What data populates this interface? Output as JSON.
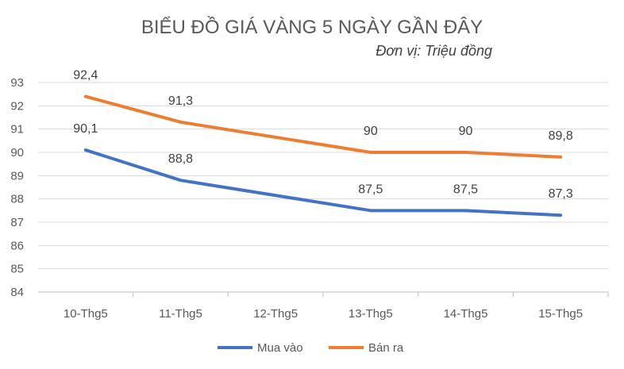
{
  "chart_data": {
    "type": "line",
    "title": "BIỂU ĐỒ GIÁ VÀNG 5 NGÀY GẦN ĐÂY",
    "subtitle": "Đơn vị: Triệu đồng",
    "categories": [
      "10-Thg5",
      "11-Thg5",
      "12-Thg5",
      "13-Thg5",
      "14-Thg5",
      "15-Thg5"
    ],
    "ylim": [
      84,
      93
    ],
    "yticks": [
      84,
      85,
      86,
      87,
      88,
      89,
      90,
      91,
      92,
      93
    ],
    "grid": true,
    "legend_position": "bottom",
    "series": [
      {
        "name": "Mua vào",
        "color": "#4472c4",
        "values": [
          90.1,
          88.8,
          null,
          87.5,
          87.5,
          87.3
        ],
        "labels": [
          "90,1",
          "88,8",
          null,
          "87,5",
          "87,5",
          "87,3"
        ]
      },
      {
        "name": "Bán ra",
        "color": "#ed7d31",
        "values": [
          92.4,
          91.3,
          null,
          90,
          90,
          89.8
        ],
        "labels": [
          "92,4",
          "91,3",
          null,
          "90",
          "90",
          "89,8"
        ]
      }
    ]
  }
}
